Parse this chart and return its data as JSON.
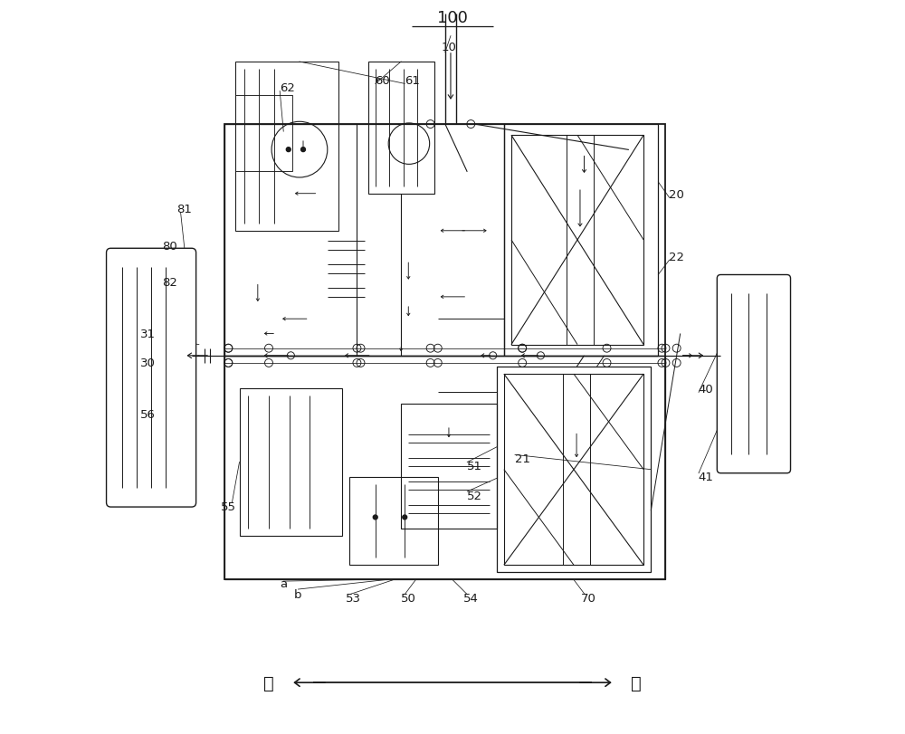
{
  "title": "100",
  "bg_color": "#ffffff",
  "lc": "#1a1a1a",
  "fig_width": 10.0,
  "fig_height": 8.12,
  "dir_left": "左",
  "dir_right": "右"
}
